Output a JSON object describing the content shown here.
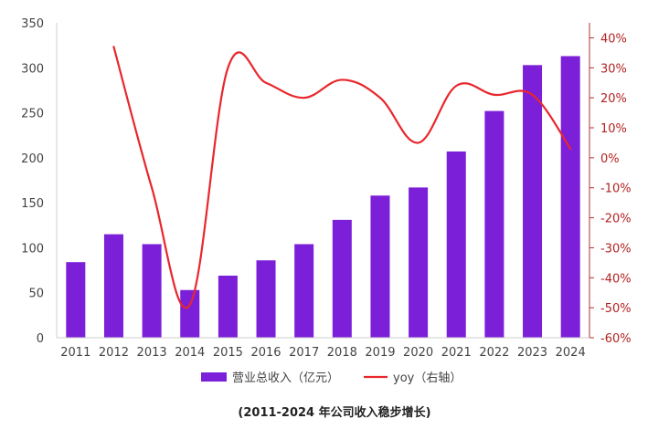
{
  "chart_data": {
    "type": "bar",
    "categories": [
      "2011",
      "2012",
      "2013",
      "2014",
      "2015",
      "2016",
      "2017",
      "2018",
      "2019",
      "2020",
      "2021",
      "2022",
      "2023",
      "2024"
    ],
    "series": [
      {
        "name": "营业总收入（亿元）",
        "type": "bar",
        "axis": "left",
        "color": "#7B1FD8",
        "values": [
          84,
          115,
          104,
          53,
          69,
          86,
          104,
          131,
          158,
          167,
          207,
          252,
          303,
          313
        ]
      },
      {
        "name": "yoy（右轴）",
        "type": "line",
        "axis": "right",
        "color": "#E8272C",
        "values": [
          null,
          37,
          -10,
          -49,
          30,
          25,
          20,
          26,
          20,
          5,
          24,
          21,
          21,
          3
        ]
      }
    ],
    "y_left": {
      "min": 0,
      "max": 350,
      "ticks": [
        0,
        50,
        100,
        150,
        200,
        250,
        300,
        350
      ]
    },
    "y_right": {
      "min": -60,
      "max": 45,
      "ticks": [
        -60,
        -50,
        -40,
        -30,
        -20,
        -10,
        0,
        10,
        20,
        30,
        40
      ],
      "unit": "%",
      "color": "#B22222"
    },
    "legend_position": "bottom"
  },
  "caption": "(2011-2024 年公司收入稳步增长)"
}
